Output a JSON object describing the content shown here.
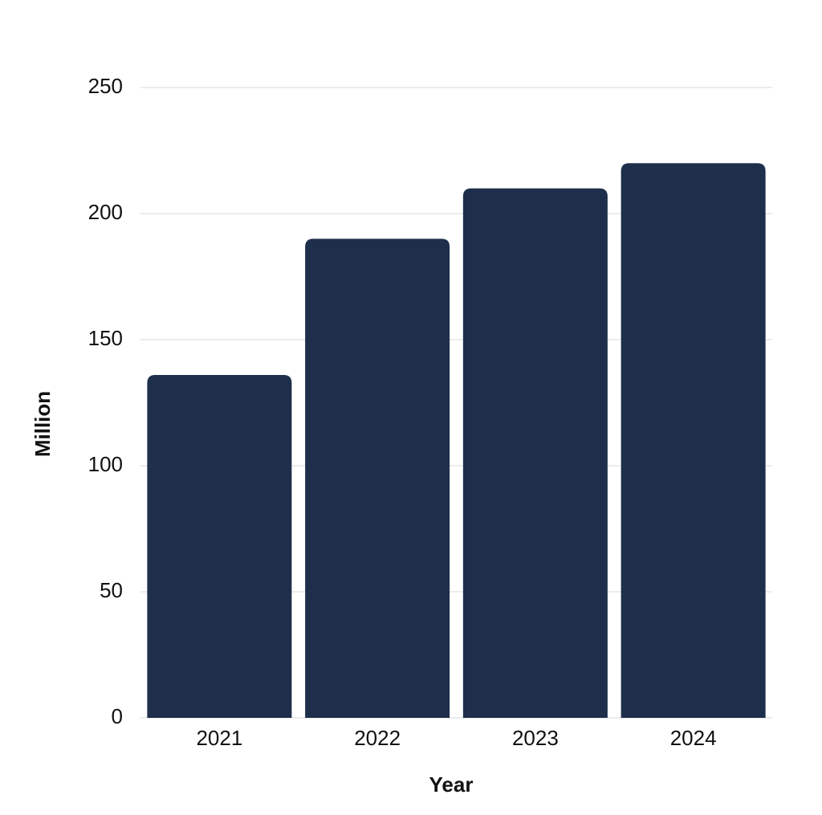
{
  "chart_data": {
    "type": "bar",
    "x_label": "Year",
    "y_label": "Million",
    "categories": [
      "2021",
      "2022",
      "2023",
      "2024"
    ],
    "values": [
      136,
      190,
      210,
      220
    ],
    "color": "#1e2f4b",
    "ylim": [
      0,
      250
    ],
    "yticks": [
      0,
      50,
      100,
      150,
      200,
      250
    ],
    "grid": true
  }
}
